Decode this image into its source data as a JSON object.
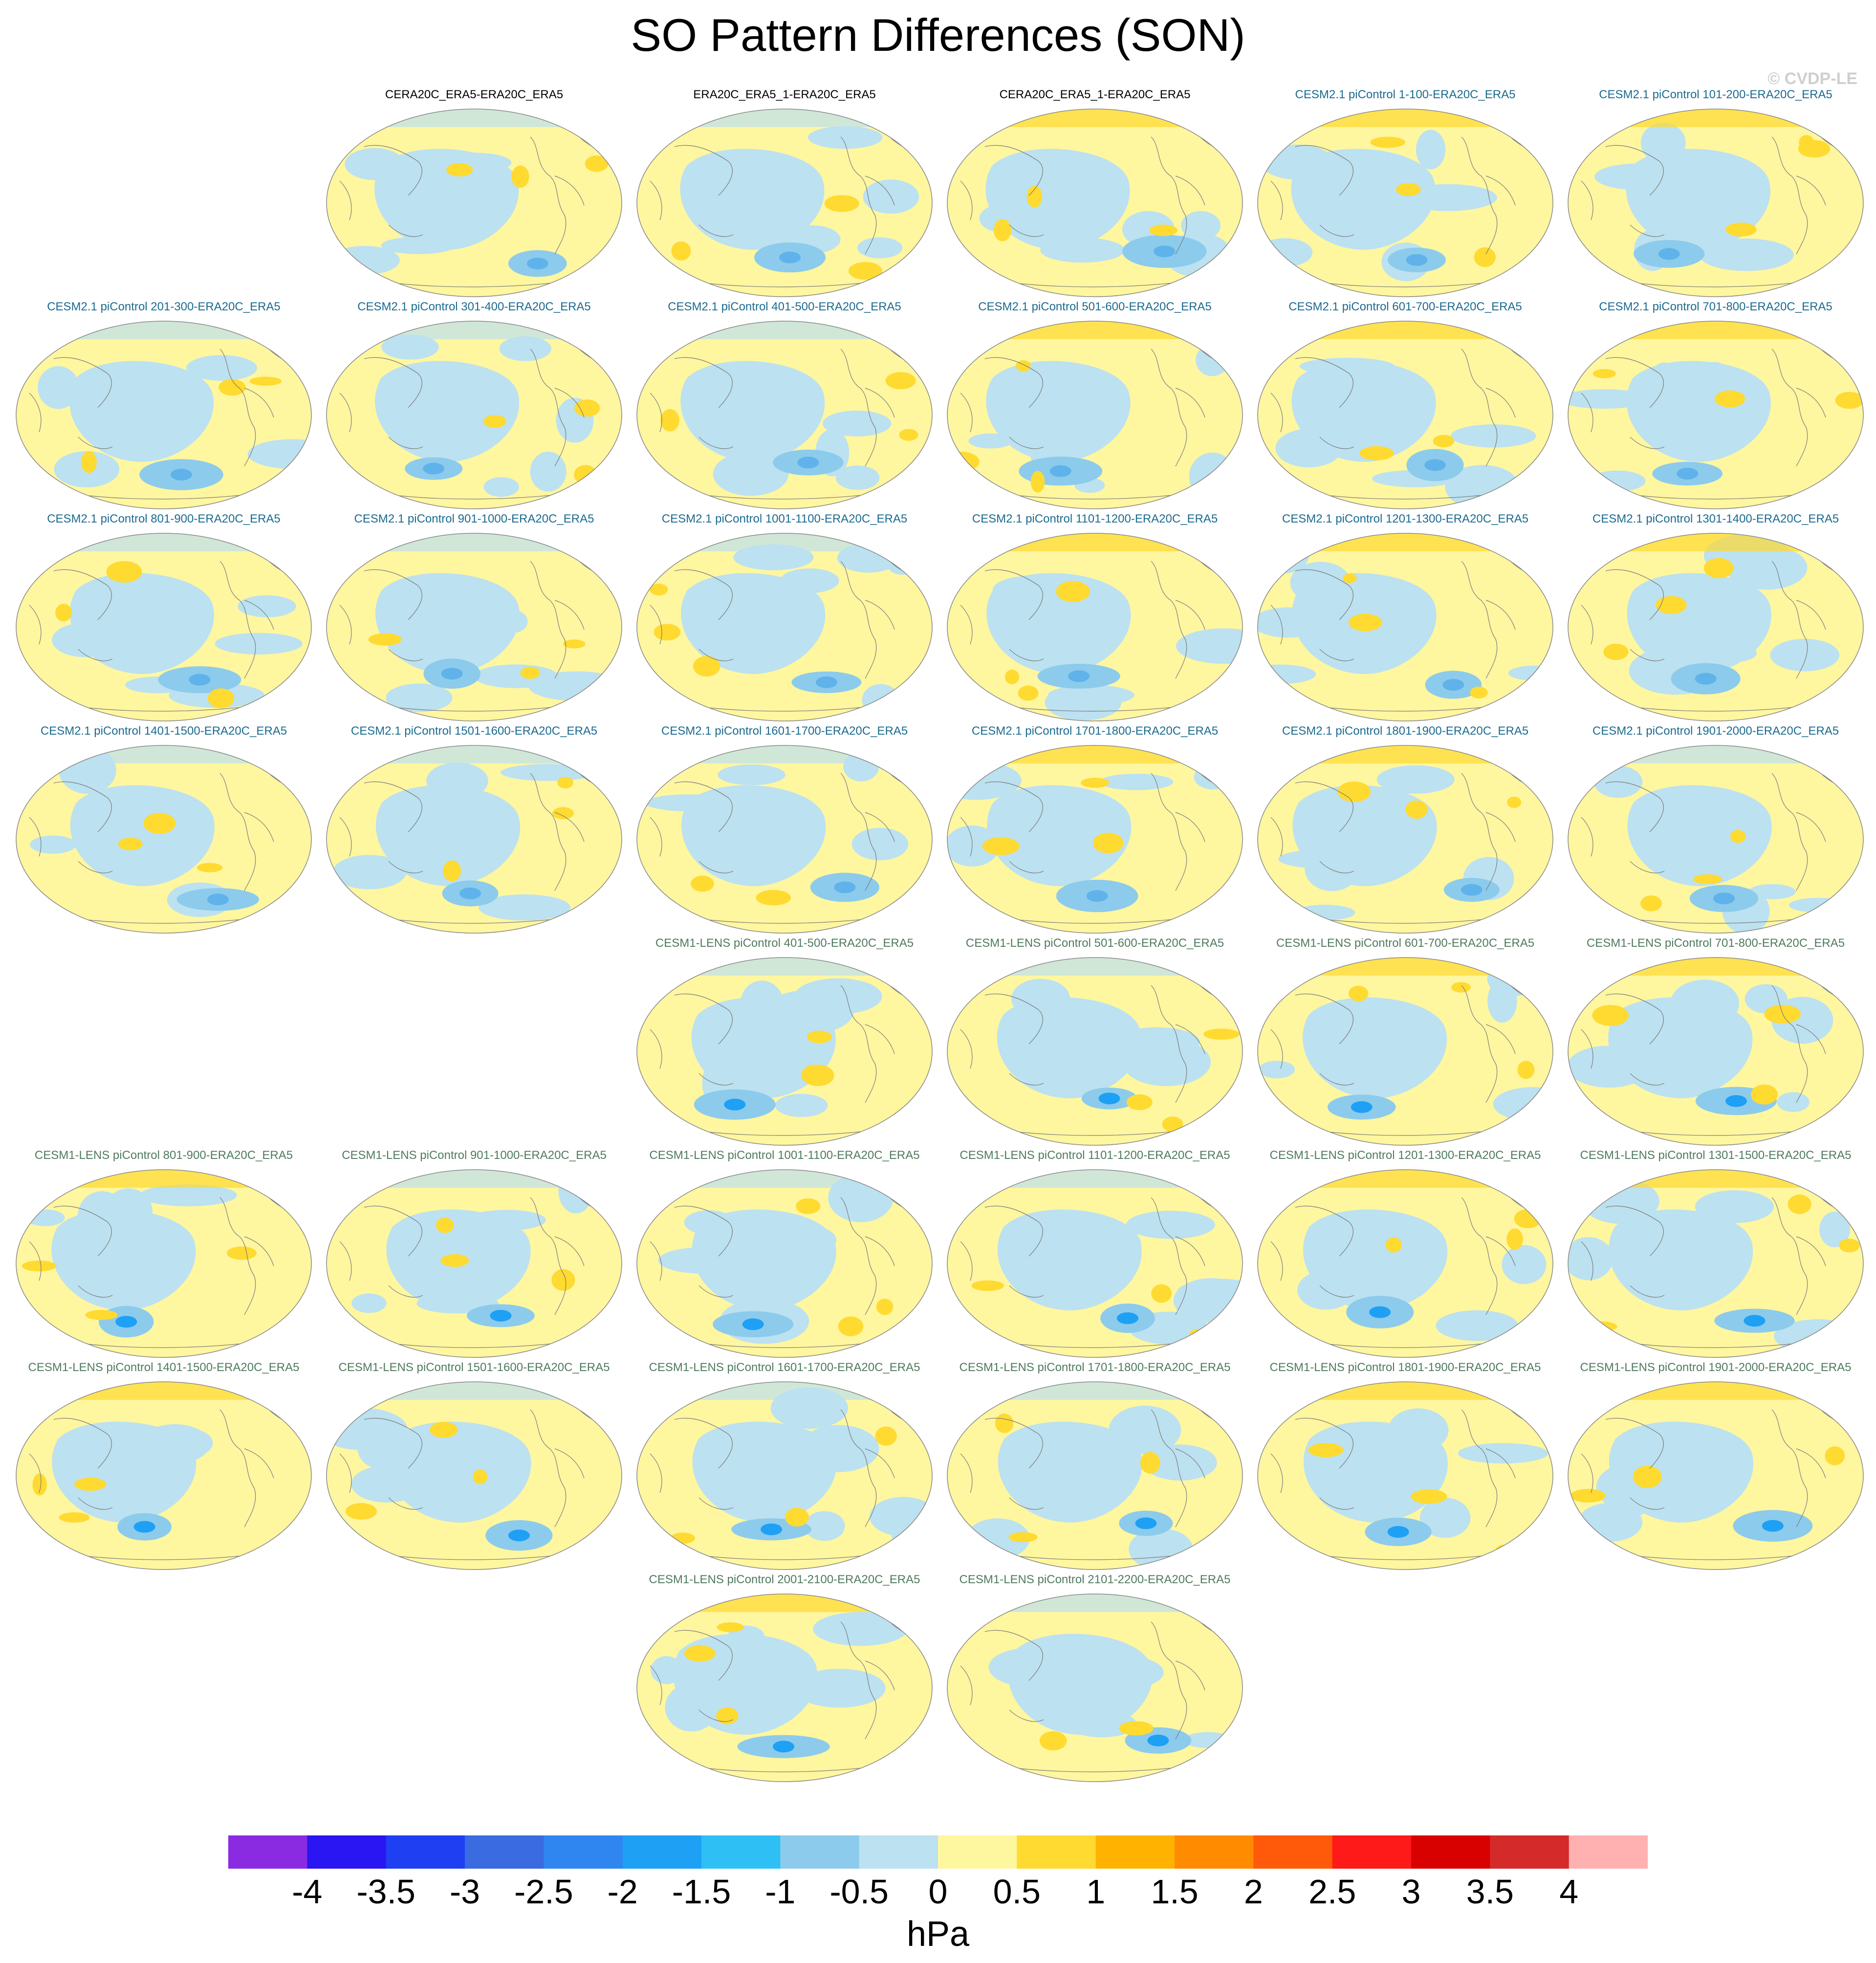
{
  "title": "SO Pattern Differences (SON)",
  "copyright": "© CVDP-LE",
  "panels": [
    {
      "label": "CERA20C_ERA5-ERA20C_ERA5",
      "group": "obs"
    },
    {
      "label": "ERA20C_ERA5_1-ERA20C_ERA5",
      "group": "obs"
    },
    {
      "label": "CERA20C_ERA5_1-ERA20C_ERA5",
      "group": "obs"
    },
    {
      "label": "CESM2.1 piControl 1-100-ERA20C_ERA5",
      "group": "cesm2"
    },
    {
      "label": "CESM2.1 piControl 101-200-ERA20C_ERA5",
      "group": "cesm2"
    },
    {
      "label": "CESM2.1 piControl 201-300-ERA20C_ERA5",
      "group": "cesm2"
    },
    {
      "label": "CESM2.1 piControl 301-400-ERA20C_ERA5",
      "group": "cesm2"
    },
    {
      "label": "CESM2.1 piControl 401-500-ERA20C_ERA5",
      "group": "cesm2"
    },
    {
      "label": "CESM2.1 piControl 501-600-ERA20C_ERA5",
      "group": "cesm2"
    },
    {
      "label": "CESM2.1 piControl 601-700-ERA20C_ERA5",
      "group": "cesm2"
    },
    {
      "label": "CESM2.1 piControl 701-800-ERA20C_ERA5",
      "group": "cesm2"
    },
    {
      "label": "CESM2.1 piControl 801-900-ERA20C_ERA5",
      "group": "cesm2"
    },
    {
      "label": "CESM2.1 piControl 901-1000-ERA20C_ERA5",
      "group": "cesm2"
    },
    {
      "label": "CESM2.1 piControl 1001-1100-ERA20C_ERA5",
      "group": "cesm2"
    },
    {
      "label": "CESM2.1 piControl 1101-1200-ERA20C_ERA5",
      "group": "cesm2"
    },
    {
      "label": "CESM2.1 piControl 1201-1300-ERA20C_ERA5",
      "group": "cesm2"
    },
    {
      "label": "CESM2.1 piControl 1301-1400-ERA20C_ERA5",
      "group": "cesm2"
    },
    {
      "label": "CESM2.1 piControl 1401-1500-ERA20C_ERA5",
      "group": "cesm2"
    },
    {
      "label": "CESM2.1 piControl 1501-1600-ERA20C_ERA5",
      "group": "cesm2"
    },
    {
      "label": "CESM2.1 piControl 1601-1700-ERA20C_ERA5",
      "group": "cesm2"
    },
    {
      "label": "CESM2.1 piControl 1701-1800-ERA20C_ERA5",
      "group": "cesm2"
    },
    {
      "label": "CESM2.1 piControl 1801-1900-ERA20C_ERA5",
      "group": "cesm2"
    },
    {
      "label": "CESM2.1 piControl 1901-2000-ERA20C_ERA5",
      "group": "cesm2"
    },
    {
      "label": "CESM1-LENS piControl 401-500-ERA20C_ERA5",
      "group": "cesm1"
    },
    {
      "label": "CESM1-LENS piControl 501-600-ERA20C_ERA5",
      "group": "cesm1"
    },
    {
      "label": "CESM1-LENS piControl 601-700-ERA20C_ERA5",
      "group": "cesm1"
    },
    {
      "label": "CESM1-LENS piControl 701-800-ERA20C_ERA5",
      "group": "cesm1"
    },
    {
      "label": "CESM1-LENS piControl 801-900-ERA20C_ERA5",
      "group": "cesm1"
    },
    {
      "label": "CESM1-LENS piControl 901-1000-ERA20C_ERA5",
      "group": "cesm1"
    },
    {
      "label": "CESM1-LENS piControl 1001-1100-ERA20C_ERA5",
      "group": "cesm1"
    },
    {
      "label": "CESM1-LENS piControl 1101-1200-ERA20C_ERA5",
      "group": "cesm1"
    },
    {
      "label": "CESM1-LENS piControl 1201-1300-ERA20C_ERA5",
      "group": "cesm1"
    },
    {
      "label": "CESM1-LENS piControl 1301-1500-ERA20C_ERA5",
      "group": "cesm1"
    },
    {
      "label": "CESM1-LENS piControl 1401-1500-ERA20C_ERA5",
      "group": "cesm1"
    },
    {
      "label": "CESM1-LENS piControl 1501-1600-ERA20C_ERA5",
      "group": "cesm1"
    },
    {
      "label": "CESM1-LENS piControl 1601-1700-ERA20C_ERA5",
      "group": "cesm1"
    },
    {
      "label": "CESM1-LENS piControl 1701-1800-ERA20C_ERA5",
      "group": "cesm1"
    },
    {
      "label": "CESM1-LENS piControl 1801-1900-ERA20C_ERA5",
      "group": "cesm1"
    },
    {
      "label": "CESM1-LENS piControl 1901-2000-ERA20C_ERA5",
      "group": "cesm1"
    },
    {
      "label": "CESM1-LENS piControl 2001-2100-ERA20C_ERA5",
      "group": "cesm1"
    },
    {
      "label": "CESM1-LENS piControl 2101-2200-ERA20C_ERA5",
      "group": "cesm1"
    }
  ],
  "colorbar": {
    "colors": [
      "#8a2be2",
      "#2a16f2",
      "#1f3ff2",
      "#3a6be0",
      "#2f86f0",
      "#1ea0f5",
      "#2ec0f5",
      "#8ccbec",
      "#bce1f0",
      "#fff6a0",
      "#ffda30",
      "#ffb300",
      "#ff8c00",
      "#ff5a0a",
      "#ff1a1a",
      "#d90000",
      "#d42a2a",
      "#ffb0b0"
    ],
    "labels": [
      "-4",
      "-3.5",
      "-3",
      "-2.5",
      "-2",
      "-1.5",
      "-1",
      "-0.5",
      "0",
      "0.5",
      "1",
      "1.5",
      "2",
      "2.5",
      "3",
      "3.5",
      "4"
    ]
  },
  "units": "hPa",
  "legend": {
    "fill_colors": {
      "neutral_pos": "#fff6a0",
      "neutral_neg": "#bce1f0"
    }
  }
}
